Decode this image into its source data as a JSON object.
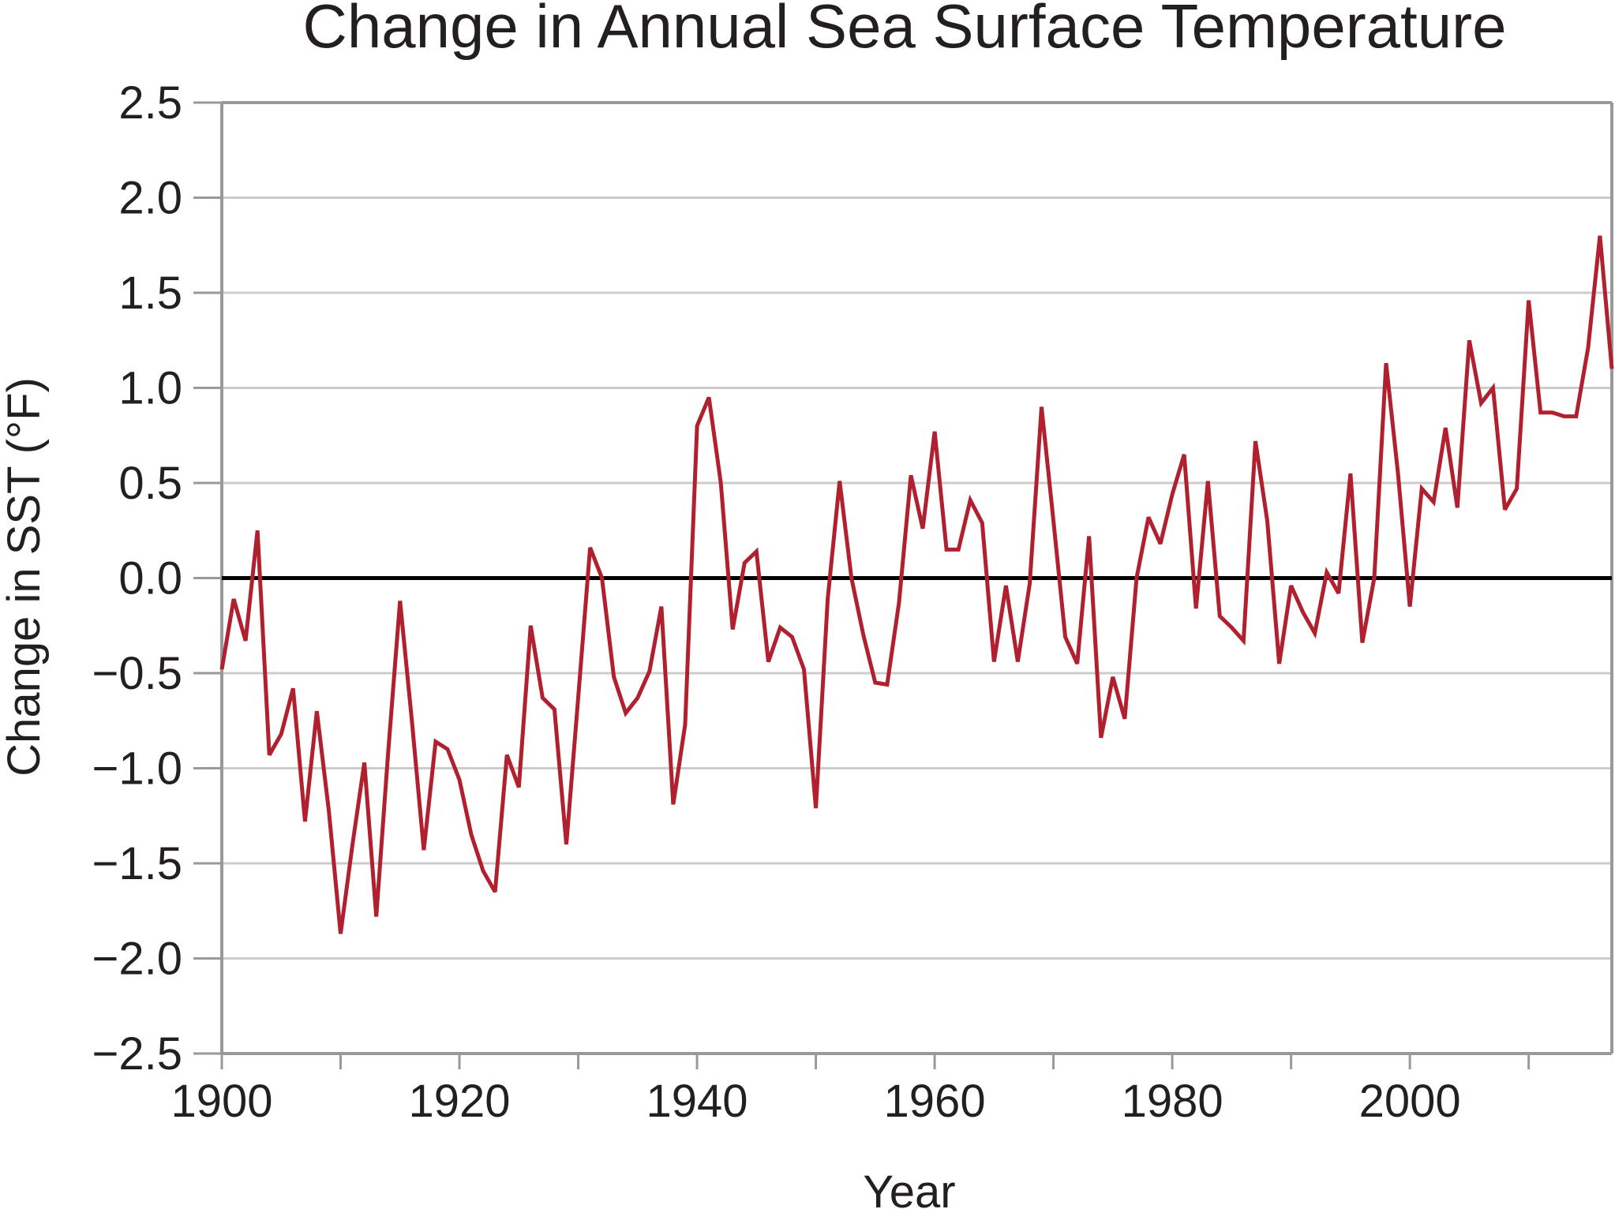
{
  "chart_data": {
    "type": "line",
    "title": "Change in Annual Sea Surface Temperature",
    "xlabel": "Year",
    "ylabel": "Change in SST (°F)",
    "xlim": [
      1900,
      2017
    ],
    "ylim": [
      -2.5,
      2.5
    ],
    "x_ticks": [
      1900,
      1920,
      1940,
      1960,
      1980,
      2000
    ],
    "x_tick_labels": [
      "1900",
      "1920",
      "1940",
      "1960",
      "1980",
      "2000"
    ],
    "y_ticks": [
      2.5,
      2.0,
      1.5,
      1.0,
      0.5,
      0.0,
      -0.5,
      -1.0,
      -1.5,
      -2.0,
      -2.5
    ],
    "y_tick_labels": [
      "2.5",
      "2.0",
      "1.5",
      "1.0",
      "0.5",
      "0.0",
      "−0.5",
      "−1.0",
      "−1.5",
      "−2.0",
      "−2.5"
    ],
    "grid": "horizontal",
    "zero_line": true,
    "colors": {
      "series": "#b0202e",
      "grid": "#cccccc",
      "axis": "#999999",
      "zero_line": "#000000",
      "text": "#231f20"
    },
    "series": [
      {
        "x": [
          1900,
          1901,
          1902,
          1903,
          1904,
          1905,
          1906,
          1907,
          1908,
          1909,
          1910,
          1911,
          1912,
          1913,
          1914,
          1915,
          1916,
          1917,
          1918,
          1919,
          1920,
          1921,
          1922,
          1923,
          1924,
          1925,
          1926,
          1927,
          1928,
          1929,
          1930,
          1931,
          1932,
          1933,
          1934,
          1935,
          1936,
          1937,
          1938,
          1939,
          1940,
          1941,
          1942,
          1943,
          1944,
          1945,
          1946,
          1947,
          1948,
          1949,
          1950,
          1951,
          1952,
          1953,
          1954,
          1955,
          1956,
          1957,
          1958,
          1959,
          1960,
          1961,
          1962,
          1963,
          1964,
          1965,
          1966,
          1967,
          1968,
          1969,
          1970,
          1971,
          1972,
          1973,
          1974,
          1975,
          1976,
          1977,
          1978,
          1979,
          1980,
          1981,
          1982,
          1983,
          1984,
          1985,
          1986,
          1987,
          1988,
          1989,
          1990,
          1991,
          1992,
          1993,
          1994,
          1995,
          1996,
          1997,
          1998,
          1999,
          2000,
          2001,
          2002,
          2003,
          2004,
          2005,
          2006,
          2007,
          2008,
          2009,
          2010,
          2011,
          2012,
          2013,
          2014,
          2015,
          2016,
          2017
        ],
        "y": [
          -0.48,
          -0.11,
          -0.33,
          0.25,
          -0.93,
          -0.82,
          -0.58,
          -1.28,
          -0.7,
          -1.22,
          -1.87,
          -1.4,
          -0.97,
          -1.78,
          -0.92,
          -0.12,
          -0.75,
          -1.43,
          -0.86,
          -0.9,
          -1.06,
          -1.35,
          -1.54,
          -1.65,
          -0.93,
          -1.1,
          -0.25,
          -0.63,
          -0.69,
          -1.4,
          -0.63,
          0.16,
          0.0,
          -0.52,
          -0.71,
          -0.63,
          -0.49,
          -0.15,
          -1.19,
          -0.77,
          0.8,
          0.95,
          0.5,
          -0.27,
          0.08,
          0.14,
          -0.44,
          -0.26,
          -0.31,
          -0.48,
          -1.21,
          -0.11,
          0.51,
          0.0,
          -0.3,
          -0.55,
          -0.56,
          -0.13,
          0.54,
          0.26,
          0.77,
          0.15,
          0.15,
          0.41,
          0.29,
          -0.44,
          -0.04,
          -0.44,
          -0.03,
          0.9,
          0.3,
          -0.31,
          -0.45,
          0.22,
          -0.84,
          -0.52,
          -0.74,
          0.0,
          0.32,
          0.18,
          0.44,
          0.65,
          -0.16,
          0.51,
          -0.2,
          -0.26,
          -0.33,
          0.72,
          0.3,
          -0.45,
          -0.04,
          -0.18,
          -0.29,
          0.03,
          -0.08,
          0.55,
          -0.34,
          0.0,
          1.13,
          0.55,
          -0.15,
          0.47,
          0.4,
          0.79,
          0.37,
          1.25,
          0.92,
          1.0,
          0.36,
          0.47,
          1.46,
          0.87,
          0.87,
          0.85,
          0.85,
          1.21,
          1.8,
          1.1
        ]
      }
    ]
  }
}
